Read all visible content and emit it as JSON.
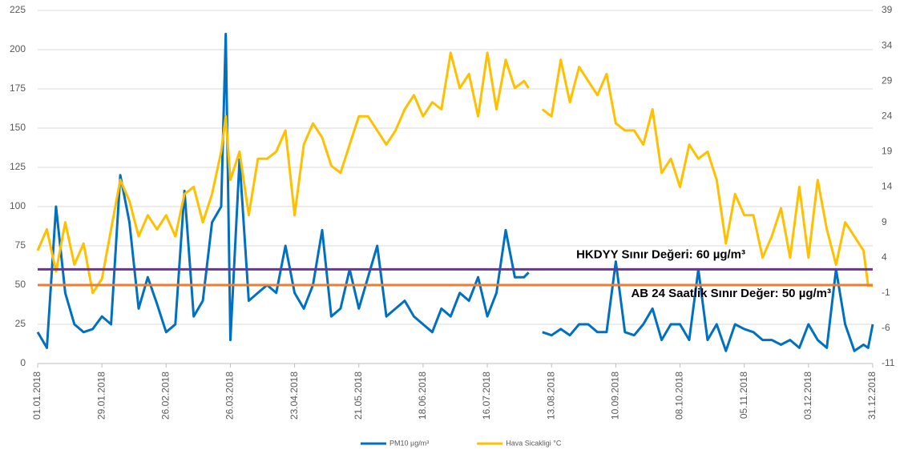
{
  "chart_data": {
    "type": "line",
    "x": [
      0,
      4,
      8,
      12,
      16,
      20,
      24,
      28,
      32,
      36,
      40,
      44,
      48,
      52,
      56,
      60,
      64,
      68,
      72,
      76,
      80,
      82,
      84,
      88,
      92,
      96,
      100,
      104,
      108,
      112,
      116,
      120,
      124,
      128,
      132,
      136,
      140,
      144,
      148,
      152,
      156,
      160,
      164,
      168,
      172,
      176,
      180,
      184,
      188,
      192,
      196,
      200,
      204,
      208,
      212,
      214,
      216,
      220,
      224,
      228,
      232,
      236,
      240,
      244,
      248,
      252,
      256,
      260,
      264,
      268,
      272,
      276,
      280,
      284,
      288,
      292,
      296,
      300,
      304,
      308,
      312,
      316,
      320,
      324,
      328,
      332,
      336,
      340,
      344,
      348,
      352,
      356,
      360,
      362,
      364
    ],
    "series": [
      {
        "name": "PM10 µg/m³",
        "color": "#0070c0",
        "axis": "y",
        "values": [
          20,
          10,
          100,
          45,
          25,
          20,
          22,
          30,
          25,
          120,
          90,
          35,
          55,
          38,
          20,
          25,
          110,
          30,
          40,
          90,
          100,
          210,
          15,
          130,
          40,
          45,
          50,
          45,
          75,
          45,
          35,
          50,
          85,
          30,
          35,
          60,
          35,
          55,
          75,
          30,
          35,
          40,
          30,
          25,
          20,
          35,
          30,
          45,
          40,
          55,
          30,
          45,
          85,
          55,
          55,
          58,
          null,
          20,
          18,
          22,
          18,
          25,
          25,
          20,
          20,
          65,
          20,
          18,
          25,
          35,
          15,
          25,
          25,
          15,
          60,
          15,
          25,
          8,
          25,
          22,
          20,
          15,
          15,
          12,
          15,
          10,
          25,
          15,
          10,
          60,
          25,
          8,
          12,
          10,
          25
        ]
      },
      {
        "name": "Hava Sicakligi °C",
        "color": "#ffc000",
        "axis": "y2",
        "values": [
          5,
          8,
          2,
          9,
          3,
          6,
          -1,
          1,
          8,
          15,
          12,
          7,
          10,
          8,
          10,
          7,
          13,
          14,
          9,
          13,
          19,
          24,
          15,
          19,
          10,
          18,
          18,
          19,
          22,
          10,
          20,
          23,
          21,
          17,
          16,
          20,
          24,
          24,
          22,
          20,
          22,
          25,
          27,
          24,
          26,
          25,
          33,
          28,
          30,
          24,
          33,
          25,
          32,
          28,
          29,
          28,
          null,
          25,
          24,
          32,
          26,
          31,
          29,
          27,
          30,
          23,
          22,
          22,
          20,
          25,
          16,
          18,
          14,
          20,
          18,
          19,
          15,
          6,
          13,
          10,
          10,
          4,
          7,
          11,
          4,
          14,
          4,
          15,
          8,
          3,
          9,
          7,
          5,
          0,
          0
        ]
      }
    ],
    "xlim": [
      0,
      364
    ],
    "xticks": [
      {
        "value": 0,
        "label": "01.01.2018"
      },
      {
        "value": 28,
        "label": "29.01.2018"
      },
      {
        "value": 56,
        "label": "26.02.2018"
      },
      {
        "value": 84,
        "label": "26.03.2018"
      },
      {
        "value": 112,
        "label": "23.04.2018"
      },
      {
        "value": 140,
        "label": "21.05.2018"
      },
      {
        "value": 168,
        "label": "18.06.2018"
      },
      {
        "value": 196,
        "label": "16.07.2018"
      },
      {
        "value": 224,
        "label": "13.08.2018"
      },
      {
        "value": 252,
        "label": "10.09.2018"
      },
      {
        "value": 280,
        "label": "08.10.2018"
      },
      {
        "value": 308,
        "label": "05.11.2018"
      },
      {
        "value": 336,
        "label": "03.12.2018"
      },
      {
        "value": 364,
        "label": "31.12.2018"
      }
    ],
    "ylim": [
      0,
      225
    ],
    "yticks": [
      0,
      25,
      50,
      75,
      100,
      125,
      150,
      175,
      200,
      225
    ],
    "y2lim": [
      -11,
      39
    ],
    "y2ticks": [
      -11,
      -6,
      -1,
      4,
      9,
      14,
      19,
      24,
      29,
      34,
      39
    ],
    "grid": true,
    "reference_lines": [
      {
        "value": 60,
        "label": "HKDYY Sınır Değeri: 60 µg/m³",
        "color": "#7030a0"
      },
      {
        "value": 50,
        "label": "AB 24 Saatlik Sınır Değer: 50 µg/m³",
        "color": "#ed7d31"
      }
    ],
    "legend": "bottom"
  }
}
